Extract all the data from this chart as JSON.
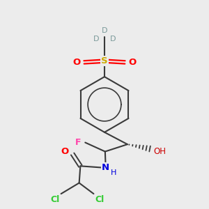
{
  "background_color": "#ececec",
  "bond_color": "#3a3a3a",
  "colors": {
    "O": "#ff0000",
    "N": "#0000dd",
    "F": "#ff44aa",
    "Cl": "#33cc33",
    "S": "#ccaa00",
    "D": "#7a9999",
    "C": "#3a3a3a",
    "H_red": "#cc0000"
  },
  "figsize": [
    3.0,
    3.0
  ],
  "dpi": 100
}
